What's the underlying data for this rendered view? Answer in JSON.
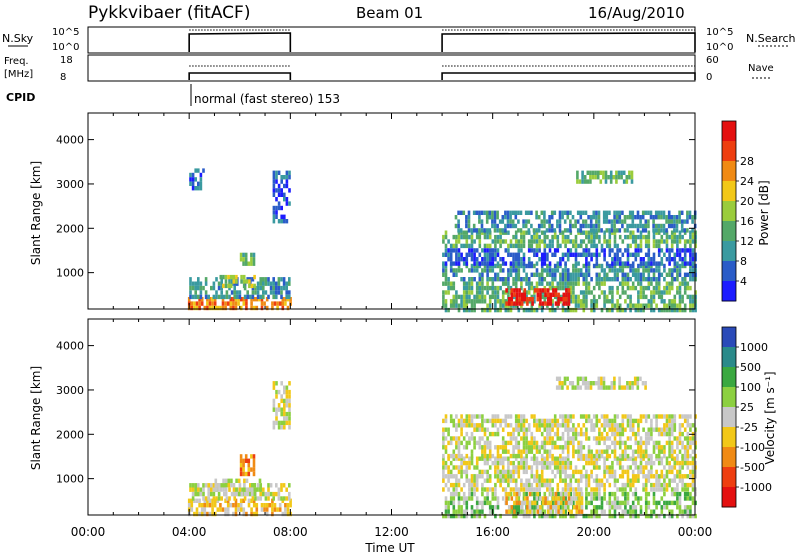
{
  "header": {
    "station": "Pykkvibaer (fitACF)",
    "beam": "Beam 01",
    "date": "16/Aug/2010"
  },
  "status_panels": {
    "nsky_label": "N.Sky",
    "nsky_ticks": [
      "10^5",
      "10^0"
    ],
    "nsearch_label": "N.Search",
    "nsearch_ticks": [
      "10^5",
      "10^0"
    ],
    "freq_label_1": "Freq.",
    "freq_label_2": "[MHz]",
    "freq_ticks": [
      "18",
      "8"
    ],
    "nave_label": "Nave",
    "nave_ticks": [
      "60",
      "0"
    ],
    "cpid_label": "CPID",
    "cpid_value": "normal (fast stereo) 153",
    "on_periods": [
      [
        4,
        8
      ],
      [
        14,
        24
      ]
    ]
  },
  "chart_data": [
    {
      "type": "heatmap",
      "name": "power",
      "ylabel": "Slant Range [km]",
      "xlabel": "Time UT",
      "x_ticks": [
        "00:00",
        "04:00",
        "08:00",
        "12:00",
        "16:00",
        "20:00",
        "00:00"
      ],
      "x_range_hours": [
        0,
        24
      ],
      "y_ticks": [
        1000,
        2000,
        3000,
        4000
      ],
      "ylim": [
        180,
        4600
      ],
      "colorbar_label": "Power [dB]",
      "colorbar_ticks": [
        "4",
        "8",
        "12",
        "16",
        "20",
        "24",
        "28"
      ],
      "colorbar_colors": [
        "#1c1cff",
        "#2a5cc8",
        "#3a9aa0",
        "#54a868",
        "#9acc3c",
        "#f2c818",
        "#f08a14",
        "#ee3e10",
        "#e41010"
      ],
      "echo_regions": [
        {
          "t": [
            3.95,
            8.0
          ],
          "r": [
            200,
            450
          ],
          "level": 6
        },
        {
          "t": [
            4.0,
            8.0
          ],
          "r": [
            450,
            900
          ],
          "level": 2
        },
        {
          "t": [
            5.2,
            6.6
          ],
          "r": [
            700,
            950
          ],
          "level": 4
        },
        {
          "t": [
            6.0,
            6.6
          ],
          "r": [
            1250,
            1450
          ],
          "level": 3
        },
        {
          "t": [
            4.0,
            4.6
          ],
          "r": [
            2900,
            3350
          ],
          "level": 1
        },
        {
          "t": [
            7.3,
            8.0
          ],
          "r": [
            2200,
            3300
          ],
          "level": 1
        },
        {
          "t": [
            14.0,
            24.0
          ],
          "r": [
            200,
            800
          ],
          "level": 3
        },
        {
          "t": [
            16.5,
            19.0
          ],
          "r": [
            350,
            650
          ],
          "level": 8
        },
        {
          "t": [
            14.0,
            24.0
          ],
          "r": [
            850,
            1200
          ],
          "level": 2
        },
        {
          "t": [
            14.0,
            24.0
          ],
          "r": [
            1250,
            1550
          ],
          "level": 1
        },
        {
          "t": [
            14.0,
            24.0
          ],
          "r": [
            1600,
            1950
          ],
          "level": 3
        },
        {
          "t": [
            14.5,
            24.0
          ],
          "r": [
            2000,
            2400
          ],
          "level": 2
        },
        {
          "t": [
            19.3,
            21.5
          ],
          "r": [
            3100,
            3300
          ],
          "level": 3
        }
      ]
    },
    {
      "type": "heatmap",
      "name": "velocity",
      "ylabel": "Slant Range [km]",
      "xlabel": "Time UT",
      "x_ticks": [
        "00:00",
        "04:00",
        "08:00",
        "12:00",
        "16:00",
        "20:00",
        "00:00"
      ],
      "x_range_hours": [
        0,
        24
      ],
      "y_ticks": [
        1000,
        2000,
        3000,
        4000
      ],
      "ylim": [
        180,
        4600
      ],
      "colorbar_label": "Velocity [m s⁻¹]",
      "colorbar_ticks": [
        "1000",
        "500",
        "100",
        "25",
        "-25",
        "-100",
        "-500",
        "-1000"
      ],
      "colorbar_colors": [
        "#2a4ab8",
        "#2a8a8a",
        "#3aa840",
        "#8cd040",
        "#c8c8c8",
        "#f2c818",
        "#f08a14",
        "#ee3e10",
        "#e41010"
      ],
      "echo_regions": [
        {
          "t": [
            3.95,
            8.0
          ],
          "r": [
            200,
            550
          ],
          "level": 5
        },
        {
          "t": [
            4.0,
            8.0
          ],
          "r": [
            550,
            900
          ],
          "level": 4
        },
        {
          "t": [
            5.0,
            6.8
          ],
          "r": [
            700,
            1000
          ],
          "level": 4
        },
        {
          "t": [
            6.0,
            6.6
          ],
          "r": [
            1150,
            1550
          ],
          "level": 6
        },
        {
          "t": [
            7.3,
            8.0
          ],
          "r": [
            2200,
            3200
          ],
          "level": 4
        },
        {
          "t": [
            14.0,
            24.0
          ],
          "r": [
            200,
            700
          ],
          "level": 3
        },
        {
          "t": [
            16.5,
            19.5
          ],
          "r": [
            300,
            700
          ],
          "level": 5
        },
        {
          "t": [
            14.0,
            24.0
          ],
          "r": [
            750,
            1500
          ],
          "level": 4
        },
        {
          "t": [
            14.0,
            24.0
          ],
          "r": [
            1500,
            2450
          ],
          "level": 4
        },
        {
          "t": [
            18.5,
            22.0
          ],
          "r": [
            3050,
            3300
          ],
          "level": 4
        }
      ]
    }
  ]
}
